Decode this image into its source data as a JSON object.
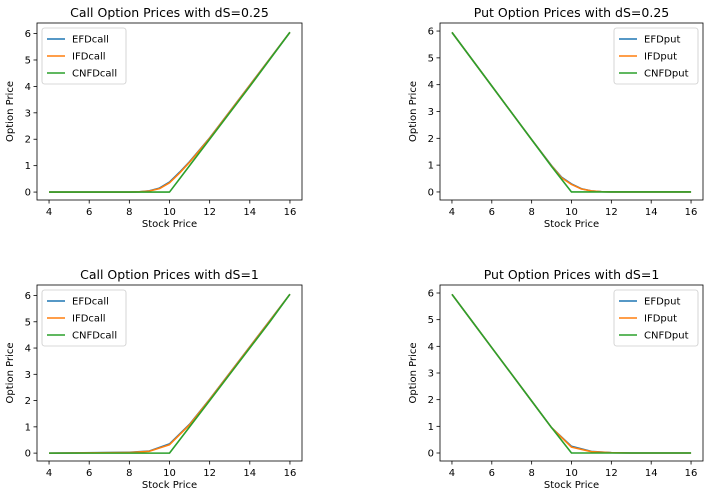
{
  "figure": {
    "colors": {
      "EFD": "#1f77b4",
      "IFD": "#ff7f0e",
      "CNFD": "#2ca02c",
      "outline": "#000000",
      "legend_border": "#cccccc"
    }
  },
  "chart_data": [
    {
      "type": "line",
      "title": "Call Option Prices with dS=0.25",
      "xlabel": "Stock Price",
      "ylabel": "Option Price",
      "xlim": [
        3.4,
        16.6
      ],
      "ylim": [
        -0.3,
        6.4
      ],
      "xticks": [
        "4",
        "6",
        "8",
        "10",
        "12",
        "14",
        "16"
      ],
      "yticks": [
        "0",
        "1",
        "2",
        "3",
        "4",
        "5",
        "6"
      ],
      "legend_position": "upper-left",
      "series": [
        {
          "name": "EFDcall",
          "color": "#1f77b4",
          "x": [
            4,
            8,
            8.5,
            9,
            9.5,
            10,
            10.5,
            11,
            12,
            14,
            16
          ],
          "y": [
            0,
            0,
            0.01,
            0.05,
            0.15,
            0.38,
            0.75,
            1.15,
            2.05,
            4.05,
            6.05
          ]
        },
        {
          "name": "IFDcall",
          "color": "#ff7f0e",
          "x": [
            4,
            8,
            8.5,
            9,
            9.5,
            10,
            10.5,
            11,
            12,
            14,
            16
          ],
          "y": [
            0,
            0,
            0.01,
            0.04,
            0.13,
            0.35,
            0.72,
            1.13,
            2.04,
            4.04,
            6.05
          ]
        },
        {
          "name": "CNFDcall",
          "color": "#2ca02c",
          "x": [
            4,
            8,
            9,
            10,
            10.5,
            11,
            12,
            14,
            16
          ],
          "y": [
            0,
            0,
            0,
            0,
            0.5,
            1.0,
            2.0,
            4.0,
            6.05
          ]
        }
      ]
    },
    {
      "type": "line",
      "title": "Put Option Prices with dS=0.25",
      "xlabel": "Stock Price",
      "ylabel": "Option Price",
      "xlim": [
        3.4,
        16.6
      ],
      "ylim": [
        -0.3,
        6.3
      ],
      "xticks": [
        "4",
        "6",
        "8",
        "10",
        "12",
        "14",
        "16"
      ],
      "yticks": [
        "0",
        "1",
        "2",
        "3",
        "4",
        "5",
        "6"
      ],
      "legend_position": "upper-right",
      "series": [
        {
          "name": "EFDput",
          "color": "#1f77b4",
          "x": [
            4,
            6,
            8,
            9,
            9.5,
            10,
            10.5,
            11,
            11.5,
            12,
            14,
            16
          ],
          "y": [
            5.95,
            3.95,
            1.95,
            0.98,
            0.55,
            0.3,
            0.12,
            0.04,
            0.01,
            0,
            0,
            0
          ]
        },
        {
          "name": "IFDput",
          "color": "#ff7f0e",
          "x": [
            4,
            6,
            8,
            9,
            9.5,
            10,
            10.5,
            11,
            11.5,
            12,
            14,
            16
          ],
          "y": [
            5.95,
            3.95,
            1.95,
            0.97,
            0.53,
            0.28,
            0.11,
            0.04,
            0.01,
            0,
            0,
            0
          ]
        },
        {
          "name": "CNFDput",
          "color": "#2ca02c",
          "x": [
            4,
            6,
            8,
            9,
            10,
            11,
            12,
            14,
            16
          ],
          "y": [
            5.95,
            3.95,
            1.95,
            0.95,
            0,
            0,
            0,
            0,
            0
          ]
        }
      ]
    },
    {
      "type": "line",
      "title": "Call Option Prices with dS=1",
      "xlabel": "Stock Price",
      "ylabel": "Option Price",
      "xlim": [
        3.4,
        16.6
      ],
      "ylim": [
        -0.3,
        6.4
      ],
      "xticks": [
        "4",
        "6",
        "8",
        "10",
        "12",
        "14",
        "16"
      ],
      "yticks": [
        "0",
        "1",
        "2",
        "3",
        "4",
        "5",
        "6"
      ],
      "legend_position": "upper-left",
      "series": [
        {
          "name": "EFDcall",
          "color": "#1f77b4",
          "x": [
            4,
            8,
            9,
            10,
            11,
            12,
            13,
            14,
            15,
            16
          ],
          "y": [
            0,
            0.03,
            0.08,
            0.35,
            1.1,
            2.05,
            3.05,
            4.05,
            5.05,
            6.05
          ]
        },
        {
          "name": "IFDcall",
          "color": "#ff7f0e",
          "x": [
            4,
            8,
            9,
            10,
            11,
            12,
            13,
            14,
            15,
            16
          ],
          "y": [
            0,
            0.02,
            0.07,
            0.32,
            1.08,
            2.04,
            3.04,
            4.04,
            5.04,
            6.05
          ]
        },
        {
          "name": "CNFDcall",
          "color": "#2ca02c",
          "x": [
            4,
            8,
            9,
            10,
            11,
            12,
            13,
            14,
            15,
            16
          ],
          "y": [
            0,
            0,
            0,
            0,
            1.0,
            2.0,
            3.0,
            4.0,
            5.0,
            6.05
          ]
        }
      ]
    },
    {
      "type": "line",
      "title": "Put Option Prices with dS=1",
      "xlabel": "Stock Price",
      "ylabel": "Option Price",
      "xlim": [
        3.4,
        16.6
      ],
      "ylim": [
        -0.3,
        6.3
      ],
      "xticks": [
        "4",
        "6",
        "8",
        "10",
        "12",
        "14",
        "16"
      ],
      "yticks": [
        "0",
        "1",
        "2",
        "3",
        "4",
        "5",
        "6"
      ],
      "legend_position": "upper-right",
      "series": [
        {
          "name": "EFDput",
          "color": "#1f77b4",
          "x": [
            4,
            5,
            6,
            7,
            8,
            9,
            10,
            11,
            12,
            13,
            14,
            15,
            16
          ],
          "y": [
            5.95,
            4.95,
            3.95,
            2.95,
            1.95,
            0.95,
            0.25,
            0.06,
            0.01,
            0,
            0,
            0,
            0
          ]
        },
        {
          "name": "IFDput",
          "color": "#ff7f0e",
          "x": [
            4,
            5,
            6,
            7,
            8,
            9,
            10,
            11,
            12,
            13,
            14,
            15,
            16
          ],
          "y": [
            5.95,
            4.95,
            3.95,
            2.95,
            1.95,
            0.95,
            0.22,
            0.05,
            0.01,
            0,
            0,
            0,
            0
          ]
        },
        {
          "name": "CNFDput",
          "color": "#2ca02c",
          "x": [
            4,
            5,
            6,
            7,
            8,
            9,
            10,
            11,
            12,
            13,
            14,
            15,
            16
          ],
          "y": [
            5.95,
            4.95,
            3.95,
            2.95,
            1.95,
            0.95,
            0,
            0,
            0,
            0,
            0,
            0,
            0
          ]
        }
      ]
    }
  ]
}
